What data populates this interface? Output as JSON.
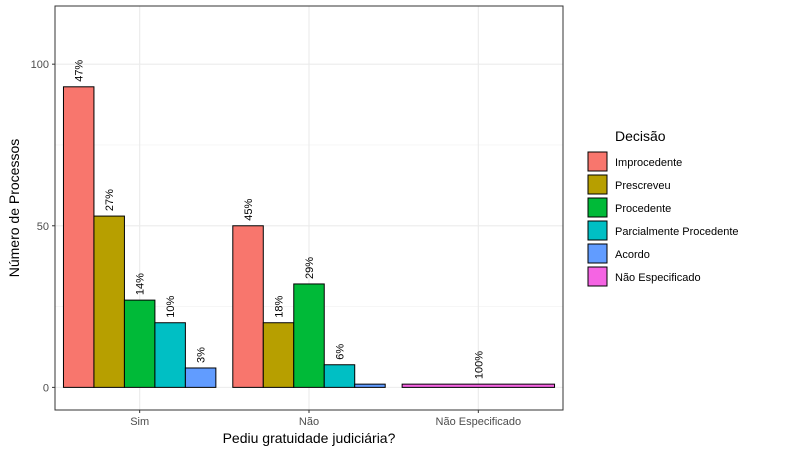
{
  "chart_data": {
    "type": "bar",
    "xlabel": "Pediu gratuidade judiciária?",
    "ylabel": "Número de Processos",
    "ylim": [
      -7,
      118
    ],
    "yticks": [
      0,
      50,
      100
    ],
    "grid": true,
    "legend": {
      "title": "Decisão",
      "position": "right",
      "entries": [
        "Improcedente",
        "Prescreveu",
        "Procedente",
        "Parcialmente Procedente",
        "Acordo",
        "Não Especificado"
      ]
    },
    "colors": {
      "Improcedente": "#F8766D",
      "Prescreveu": "#B79F00",
      "Procedente": "#00BA38",
      "Parcialmente Procedente": "#00BFC4",
      "Acordo": "#619CFF",
      "Não Especificado": "#F564E3"
    },
    "groups": [
      {
        "category": "Sim",
        "bars": [
          {
            "decisao": "Improcedente",
            "value": 93,
            "label": "47%"
          },
          {
            "decisao": "Prescreveu",
            "value": 53,
            "label": "27%"
          },
          {
            "decisao": "Procedente",
            "value": 27,
            "label": "14%"
          },
          {
            "decisao": "Parcialmente Procedente",
            "value": 20,
            "label": "10%"
          },
          {
            "decisao": "Acordo",
            "value": 6,
            "label": "3%"
          }
        ]
      },
      {
        "category": "Não",
        "bars": [
          {
            "decisao": "Improcedente",
            "value": 50,
            "label": "45%"
          },
          {
            "decisao": "Prescreveu",
            "value": 20,
            "label": "18%"
          },
          {
            "decisao": "Procedente",
            "value": 32,
            "label": "29%"
          },
          {
            "decisao": "Parcialmente Procedente",
            "value": 7,
            "label": "6%"
          },
          {
            "decisao": "Acordo",
            "value": 1,
            "label": ""
          }
        ]
      },
      {
        "category": "Não Especificado",
        "bars": [
          {
            "decisao": "Não Especificado",
            "value": 1,
            "label": "100%"
          }
        ]
      }
    ]
  }
}
